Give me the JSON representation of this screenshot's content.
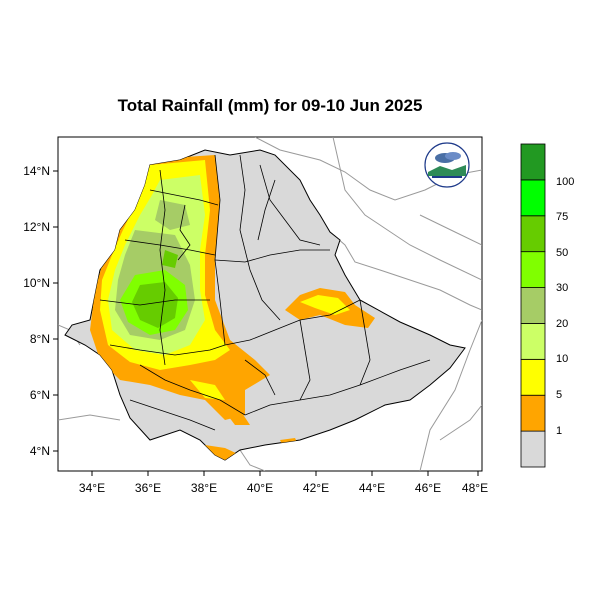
{
  "title": "Total Rainfall (mm) for 09-10 Jun 2025",
  "map": {
    "lon_range": [
      33,
      48
    ],
    "lat_range": [
      3.2,
      14.9
    ],
    "x_ticks": [
      "34°E",
      "36°E",
      "38°E",
      "40°E",
      "42°E",
      "44°E",
      "46°E",
      "48°E"
    ],
    "y_ticks": [
      "4°N",
      "6°N",
      "8°N",
      "10°N",
      "12°N",
      "14°N"
    ],
    "land_color": "#d9d9d9"
  },
  "legend": {
    "colors": [
      "#d9d9d9",
      "#ffa500",
      "#ffff00",
      "#ccff66",
      "#a6cc66",
      "#80ff00",
      "#66cc00",
      "#00ff00",
      "#229922"
    ],
    "labels": [
      "1",
      "5",
      "10",
      "20",
      "30",
      "50",
      "75",
      "100"
    ]
  },
  "logo": {
    "icon": "weather-agency-logo-icon"
  }
}
